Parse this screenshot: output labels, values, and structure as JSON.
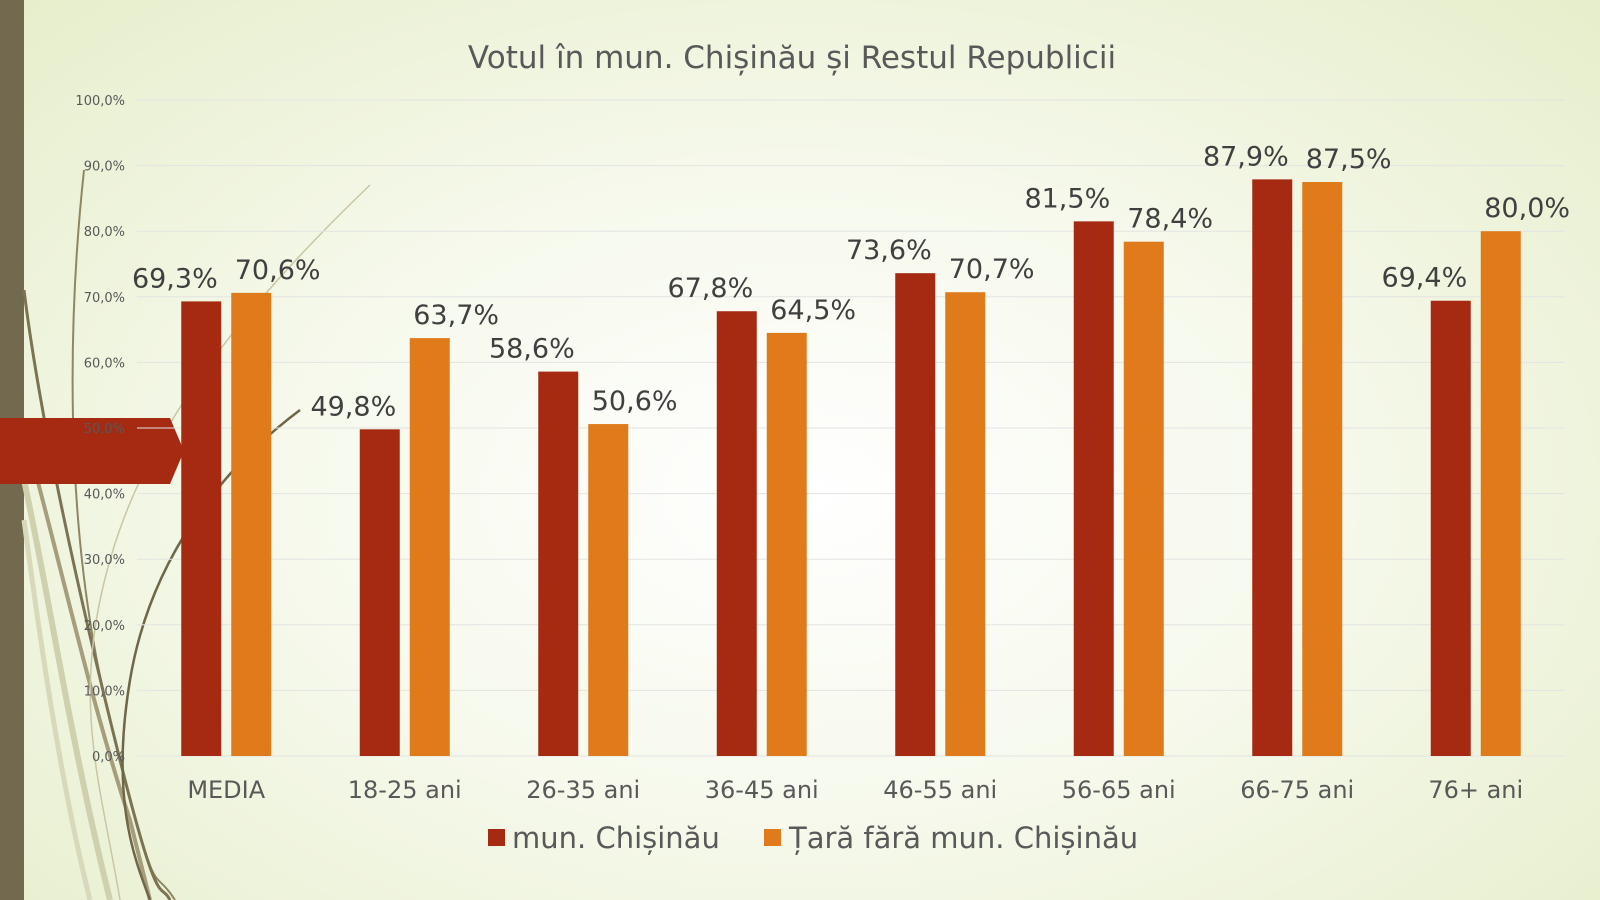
{
  "colors": {
    "series_1": "#a52a11",
    "series_2": "#df7b1b",
    "grid": "#e3e3e3",
    "side_bar": "#72694f",
    "arrow": "#a52a11"
  },
  "chart_data": {
    "type": "bar",
    "title": "Votul în mun. Chișinău și Restul Republicii",
    "xlabel": "",
    "ylabel": "",
    "ylim": [
      0,
      100
    ],
    "grid": true,
    "legend_position": "bottom",
    "y_ticks": [
      "0,0%",
      "10,0%",
      "20,0%",
      "30,0%",
      "40,0%",
      "50,0%",
      "60,0%",
      "70,0%",
      "80,0%",
      "90,0%",
      "100,0%"
    ],
    "categories": [
      "MEDIA",
      "18-25 ani",
      "26-35 ani",
      "36-45 ani",
      "46-55 ani",
      "56-65 ani",
      "66-75 ani",
      "76+ ani"
    ],
    "series": [
      {
        "name": "mun. Chișinău",
        "values": [
          69.3,
          49.8,
          58.6,
          67.8,
          73.6,
          81.5,
          87.9,
          69.4
        ],
        "labels": [
          "69,3%",
          "49,8%",
          "58,6%",
          "67,8%",
          "73,6%",
          "81,5%",
          "87,9%",
          "69,4%"
        ]
      },
      {
        "name": "Țară fără mun. Chișinău",
        "values": [
          70.6,
          63.7,
          50.6,
          64.5,
          70.7,
          78.4,
          87.5,
          80.0
        ],
        "labels": [
          "70,6%",
          "63,7%",
          "50,6%",
          "64,5%",
          "70,7%",
          "78,4%",
          "87,5%",
          "80,0%"
        ]
      }
    ]
  }
}
